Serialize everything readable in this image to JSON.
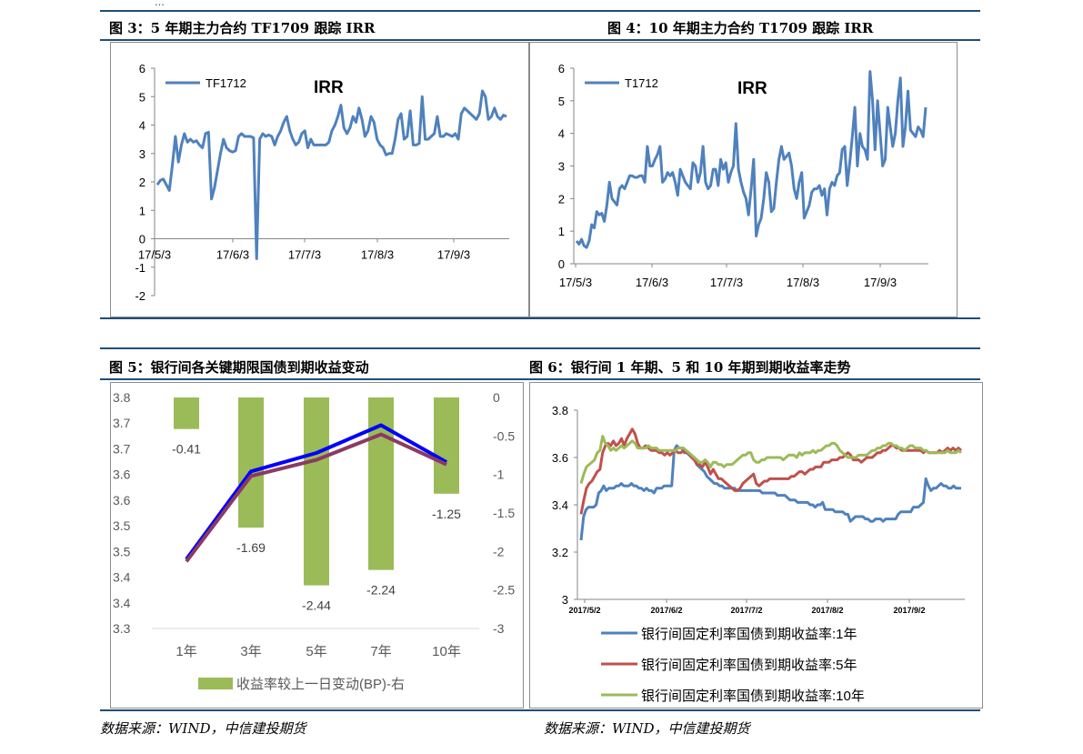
{
  "top_fragment": "...",
  "titles": {
    "fig3": "图 3：5 年期主力合约 TF1709 跟踪 IRR",
    "fig4": "图 4：10 年期主力合约 T1709 跟踪 IRR",
    "fig5": "图 5：银行间各关键期限国债到期收益变动",
    "fig6": "图 6：银行间 1 年期、5 和 10 年期到期收益率走势"
  },
  "sources": {
    "left": "数据来源：WIND，中信建投期货",
    "right": "数据来源：WIND，中信建投期货"
  },
  "colors": {
    "rule": "#1f4e79",
    "irr_line": "#4f81bd",
    "bar": "#9bbb59",
    "blue_line": "#0000ff",
    "purple_line": "#8b3a62",
    "yield_1y": "#4f81bd",
    "yield_5y": "#c0504d",
    "yield_10y": "#9bbb59"
  },
  "chart_data": [
    {
      "id": "fig3",
      "type": "line",
      "annotation": "IRR",
      "ylim": [
        -2,
        6
      ],
      "yticks": [
        "6",
        "5",
        "4",
        "3",
        "2",
        "1",
        "0",
        "-1",
        "-2"
      ],
      "xticks": [
        "17/5/3",
        "17/6/3",
        "17/7/3",
        "17/8/3",
        "17/9/3"
      ],
      "series": [
        {
          "name": "TF1712",
          "values": [
            1.9,
            2.05,
            2.1,
            1.9,
            1.7,
            2.6,
            3.6,
            2.7,
            3.3,
            3.7,
            3.4,
            3.5,
            3.4,
            3.45,
            3.3,
            3.2,
            3.7,
            3.75,
            1.4,
            1.8,
            2.4,
            3.0,
            3.5,
            3.2,
            3.1,
            3.05,
            3.1,
            3.6,
            3.7,
            3.6,
            3.6,
            3.6,
            3.55,
            -0.7,
            3.5,
            3.7,
            3.6,
            3.65,
            3.6,
            3.3,
            3.6,
            3.8,
            4.1,
            4.3,
            3.8,
            3.5,
            3.3,
            3.4,
            3.7,
            3.8,
            3.2,
            3.5,
            3.3,
            3.3,
            3.3,
            3.3,
            3.3,
            3.4,
            3.8,
            4.0,
            4.3,
            4.7,
            3.9,
            3.7,
            3.9,
            4.3,
            4.1,
            4.6,
            4.2,
            3.6,
            3.8,
            4.3,
            4.1,
            3.5,
            3.3,
            3.2,
            2.95,
            3.0,
            3.0,
            3.5,
            4.2,
            4.4,
            3.5,
            3.6,
            4.5,
            3.3,
            3.3,
            3.35,
            5.0,
            3.5,
            3.5,
            3.6,
            3.7,
            4.3,
            3.6,
            3.6,
            3.7,
            3.65,
            3.6,
            3.7,
            3.5,
            4.4,
            4.6,
            4.5,
            4.4,
            4.3,
            4.2,
            4.4,
            5.2,
            5.0,
            4.2,
            4.3,
            4.6,
            4.3,
            4.2,
            4.35,
            4.3
          ]
        }
      ]
    },
    {
      "id": "fig4",
      "type": "line",
      "annotation": "IRR",
      "ylim": [
        0,
        6
      ],
      "yticks": [
        "6",
        "5",
        "4",
        "3",
        "2",
        "1",
        "0"
      ],
      "xticks": [
        "17/5/3",
        "17/6/3",
        "17/7/3",
        "17/8/3",
        "17/9/3"
      ],
      "series": [
        {
          "name": "T1712",
          "values": [
            0.7,
            0.6,
            0.75,
            0.55,
            0.5,
            0.7,
            1.2,
            1.1,
            1.6,
            1.5,
            1.55,
            1.3,
            1.8,
            2.5,
            2.0,
            1.9,
            1.8,
            2.3,
            2.4,
            2.3,
            2.5,
            2.7,
            2.7,
            2.65,
            2.65,
            2.7,
            2.7,
            2.5,
            3.6,
            3.0,
            3.0,
            3.2,
            3.35,
            3.6,
            2.5,
            2.6,
            2.8,
            2.7,
            2.8,
            2.5,
            2.1,
            2.9,
            2.7,
            2.5,
            2.4,
            2.3,
            3.1,
            3.0,
            2.5,
            2.8,
            3.6,
            2.5,
            2.3,
            2.4,
            2.9,
            2.9,
            2.4,
            3.2,
            2.9,
            3.1,
            2.5,
            2.8,
            3.0,
            4.3,
            2.9,
            2.5,
            2.2,
            2.0,
            1.5,
            2.3,
            3.2,
            0.85,
            1.2,
            1.4,
            2.0,
            2.8,
            2.5,
            1.6,
            1.7,
            2.5,
            3.2,
            3.6,
            3.2,
            3.3,
            3.4,
            3.0,
            2.3,
            2.0,
            2.5,
            2.8,
            1.4,
            1.6,
            1.8,
            2.2,
            2.3,
            2.3,
            2.4,
            2.1,
            2.3,
            1.5,
            2.3,
            2.5,
            2.4,
            2.7,
            2.8,
            3.5,
            3.6,
            2.4,
            3.1,
            3.9,
            4.8,
            3.0,
            4.0,
            3.6,
            3.5,
            3.2,
            5.9,
            5.0,
            3.5,
            5.0,
            4.0,
            3.0,
            3.2,
            4.8,
            4.2,
            3.6,
            4.0,
            5.0,
            5.7,
            3.6,
            4.2,
            5.3,
            4.1,
            4.0,
            3.9,
            4.2,
            4.1,
            3.9,
            4.8
          ]
        }
      ]
    },
    {
      "id": "fig5",
      "type": "bar",
      "categories": [
        "1年",
        "3年",
        "5年",
        "7年",
        "10年"
      ],
      "left_ticks": [
        "3.8",
        "3.7",
        "3.7",
        "3.6",
        "3.6",
        "3.5",
        "3.5",
        "3.4",
        "3.4",
        "3.3"
      ],
      "right_ticks": [
        "0",
        "-0.5",
        "-1",
        "-1.5",
        "-2",
        "-2.5",
        "-3"
      ],
      "bar_values": [
        -0.41,
        -1.69,
        -2.44,
        -2.24,
        -1.25
      ],
      "bar_labels": [
        "-0.41",
        "-1.69",
        "-2.44",
        "-2.24",
        "-1.25"
      ],
      "ylim_right": [
        -3,
        0
      ],
      "ylim_left": [
        3.3,
        3.8
      ],
      "legend": "收益率较上一日变动(BP)-右",
      "line_series": [
        {
          "values": [
            3.45,
            3.64,
            3.68,
            3.74,
            3.66
          ]
        },
        {
          "values": [
            3.445,
            3.63,
            3.665,
            3.72,
            3.655
          ]
        }
      ]
    },
    {
      "id": "fig6",
      "type": "line",
      "ylim": [
        3,
        3.8
      ],
      "yticks": [
        "3.8",
        "3.6",
        "3.4",
        "3.2",
        "3"
      ],
      "xticks": [
        "2017/5/2",
        "2017/6/2",
        "2017/7/2",
        "2017/8/2",
        "2017/9/2"
      ],
      "series": [
        {
          "name": "银行间固定利率国债到期收益率:1年",
          "values": [
            3.25,
            3.35,
            3.38,
            3.39,
            3.39,
            3.39,
            3.4,
            3.45,
            3.46,
            3.48,
            3.46,
            3.47,
            3.47,
            3.47,
            3.48,
            3.48,
            3.49,
            3.48,
            3.48,
            3.48,
            3.49,
            3.48,
            3.48,
            3.47,
            3.47,
            3.46,
            3.47,
            3.46,
            3.46,
            3.45,
            3.47,
            3.47,
            3.47,
            3.48,
            3.48,
            3.48,
            3.48,
            3.63,
            3.65,
            3.64,
            3.64,
            3.62,
            3.62,
            3.61,
            3.6,
            3.6,
            3.57,
            3.56,
            3.55,
            3.54,
            3.52,
            3.51,
            3.5,
            3.49,
            3.49,
            3.48,
            3.48,
            3.47,
            3.47,
            3.47,
            3.47,
            3.47,
            3.46,
            3.46,
            3.46,
            3.46,
            3.46,
            3.46,
            3.46,
            3.46,
            3.46,
            3.46,
            3.45,
            3.45,
            3.45,
            3.45,
            3.45,
            3.45,
            3.44,
            3.44,
            3.44,
            3.44,
            3.43,
            3.42,
            3.42,
            3.42,
            3.41,
            3.41,
            3.41,
            3.41,
            3.41,
            3.4,
            3.4,
            3.39,
            3.4,
            3.4,
            3.41,
            3.38,
            3.38,
            3.38,
            3.38,
            3.37,
            3.37,
            3.37,
            3.37,
            3.36,
            3.36,
            3.33,
            3.34,
            3.35,
            3.35,
            3.35,
            3.35,
            3.34,
            3.34,
            3.33,
            3.33,
            3.34,
            3.34,
            3.34,
            3.33,
            3.34,
            3.34,
            3.34,
            3.34,
            3.34,
            3.36,
            3.37,
            3.37,
            3.37,
            3.37,
            3.37,
            3.39,
            3.39,
            3.39,
            3.4,
            3.41,
            3.51,
            3.48,
            3.46,
            3.47,
            3.47,
            3.48,
            3.49,
            3.48,
            3.48,
            3.47,
            3.47,
            3.48,
            3.47,
            3.47,
            3.47
          ]
        },
        {
          "name": "银行间固定利率国债到期收益率:5年",
          "values": [
            3.36,
            3.42,
            3.47,
            3.49,
            3.5,
            3.52,
            3.54,
            3.55,
            3.62,
            3.65,
            3.66,
            3.65,
            3.67,
            3.65,
            3.66,
            3.68,
            3.65,
            3.68,
            3.7,
            3.72,
            3.7,
            3.66,
            3.64,
            3.64,
            3.65,
            3.64,
            3.63,
            3.63,
            3.63,
            3.62,
            3.62,
            3.61,
            3.62,
            3.61,
            3.62,
            3.63,
            3.62,
            3.62,
            3.63,
            3.62,
            3.62,
            3.6,
            3.59,
            3.57,
            3.57,
            3.56,
            3.58,
            3.56,
            3.53,
            3.55,
            3.53,
            3.51,
            3.51,
            3.5,
            3.49,
            3.48,
            3.47,
            3.46,
            3.46,
            3.47,
            3.49,
            3.5,
            3.51,
            3.52,
            3.53,
            3.49,
            3.48,
            3.49,
            3.5,
            3.5,
            3.51,
            3.51,
            3.51,
            3.51,
            3.51,
            3.51,
            3.51,
            3.51,
            3.52,
            3.52,
            3.53,
            3.54,
            3.54,
            3.53,
            3.54,
            3.55,
            3.55,
            3.56,
            3.56,
            3.56,
            3.58,
            3.58,
            3.58,
            3.59,
            3.59,
            3.59,
            3.6,
            3.6,
            3.61,
            3.62,
            3.61,
            3.59,
            3.59,
            3.59,
            3.58,
            3.59,
            3.6,
            3.6,
            3.6,
            3.61,
            3.62,
            3.62,
            3.63,
            3.63,
            3.64,
            3.65,
            3.65,
            3.64,
            3.64,
            3.63,
            3.63,
            3.63,
            3.63,
            3.63,
            3.63,
            3.63,
            3.63,
            3.62,
            3.63,
            3.62,
            3.62,
            3.62,
            3.62,
            3.63,
            3.62,
            3.63,
            3.64,
            3.63,
            3.64,
            3.63,
            3.64,
            3.63
          ]
        },
        {
          "name": "银行间固定利率国债到期收益率:10年",
          "values": [
            3.49,
            3.53,
            3.56,
            3.57,
            3.58,
            3.59,
            3.62,
            3.63,
            3.69,
            3.66,
            3.65,
            3.63,
            3.64,
            3.63,
            3.64,
            3.65,
            3.64,
            3.65,
            3.66,
            3.67,
            3.66,
            3.64,
            3.64,
            3.64,
            3.64,
            3.65,
            3.64,
            3.64,
            3.64,
            3.63,
            3.63,
            3.63,
            3.63,
            3.63,
            3.63,
            3.63,
            3.64,
            3.64,
            3.64,
            3.63,
            3.62,
            3.61,
            3.6,
            3.59,
            3.58,
            3.58,
            3.59,
            3.58,
            3.56,
            3.58,
            3.58,
            3.57,
            3.57,
            3.56,
            3.57,
            3.57,
            3.57,
            3.58,
            3.59,
            3.6,
            3.61,
            3.61,
            3.62,
            3.62,
            3.59,
            3.58,
            3.58,
            3.59,
            3.59,
            3.6,
            3.6,
            3.6,
            3.6,
            3.6,
            3.6,
            3.59,
            3.6,
            3.61,
            3.61,
            3.61,
            3.6,
            3.62,
            3.61,
            3.62,
            3.62,
            3.62,
            3.63,
            3.62,
            3.63,
            3.63,
            3.64,
            3.65,
            3.65,
            3.66,
            3.66,
            3.65,
            3.63,
            3.62,
            3.61,
            3.6,
            3.6,
            3.6,
            3.6,
            3.61,
            3.61,
            3.61,
            3.61,
            3.62,
            3.63,
            3.63,
            3.64,
            3.64,
            3.65,
            3.65,
            3.66,
            3.66,
            3.65,
            3.65,
            3.64,
            3.64,
            3.63,
            3.64,
            3.65,
            3.65,
            3.64,
            3.64,
            3.64,
            3.63,
            3.63,
            3.62,
            3.62,
            3.62,
            3.62,
            3.62,
            3.62,
            3.62,
            3.63,
            3.62,
            3.62,
            3.62,
            3.63,
            3.62
          ]
        }
      ]
    }
  ]
}
